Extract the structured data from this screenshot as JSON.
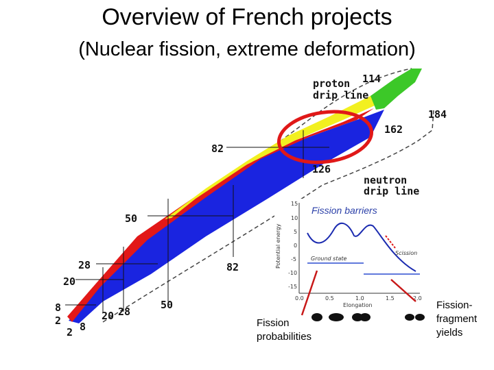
{
  "title": "Overview of French projects",
  "subtitle": "(Nuclear fission, extreme deformation)",
  "chart_labels": {
    "proton_drip_line": [
      "proton",
      "drip line"
    ],
    "neutron_drip_line": [
      "neutron",
      "drip line"
    ],
    "magic_numbers": {
      "n114": "114",
      "n184": "184",
      "n162": "162",
      "n126": "126",
      "p82": "82",
      "n82": "82",
      "p50": "50",
      "n50": "50",
      "p28": "28",
      "p20": "20",
      "p8": "8",
      "p2": "2",
      "n2": "2",
      "n8": "8",
      "n20": "20",
      "n28": "28"
    }
  },
  "inset": {
    "title": "Fission barriers",
    "ylabel": "Potential energy",
    "xlabel": "Elongation",
    "ground_state": "Ground state",
    "scission": "Scission",
    "y_ticks": [
      "15",
      "10",
      "5",
      "0",
      "-5",
      "-10",
      "-15"
    ],
    "x_ticks": [
      "0.0",
      "0.5",
      "1.0",
      "1.5",
      "2.0"
    ]
  },
  "annotations": {
    "fission_probabilities": [
      "Fission",
      "probabilities"
    ],
    "fission_fragment_yields": [
      "Fission-",
      "fragment",
      "yields"
    ]
  },
  "colors": {
    "blue": "#1a24e0",
    "red": "#e21818",
    "yellow": "#f2f020",
    "green": "#3cc828",
    "accent_circle": "#e01818"
  }
}
